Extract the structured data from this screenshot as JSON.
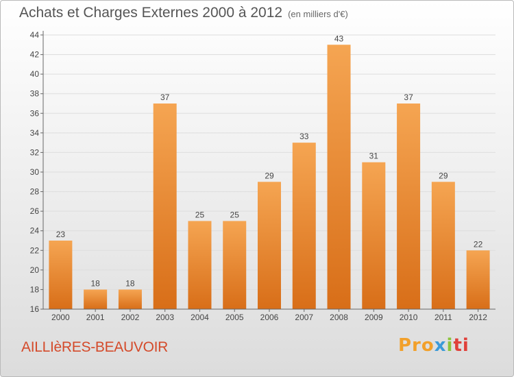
{
  "header": {
    "title": "Achats et Charges Externes 2000 à 2012",
    "unit": "(en milliers d'€)"
  },
  "footer": {
    "commune": "AILLIèRES-BEAUVOIR",
    "logo": [
      "Pro",
      "x",
      "i",
      "ti"
    ]
  },
  "colors": {
    "bar_top": "#f5a552",
    "bar_bottom": "#d86e18",
    "axis": "#666666",
    "grid": "#dddddd",
    "commune": "#d44a2a"
  },
  "chart_data": {
    "type": "bar",
    "title": "Achats et Charges Externes 2000 à 2012",
    "subtitle": "(en milliers d'€)",
    "categories": [
      "2000",
      "2001",
      "2002",
      "2003",
      "2004",
      "2005",
      "2006",
      "2007",
      "2008",
      "2009",
      "2010",
      "2011",
      "2012"
    ],
    "values": [
      23,
      18,
      18,
      37,
      25,
      25,
      29,
      33,
      43,
      31,
      37,
      29,
      22
    ],
    "ylim": [
      16,
      44
    ],
    "yticks": [
      16,
      18,
      20,
      22,
      24,
      26,
      28,
      30,
      32,
      34,
      36,
      38,
      40,
      42,
      44
    ],
    "grid": true,
    "data_labels": true
  }
}
